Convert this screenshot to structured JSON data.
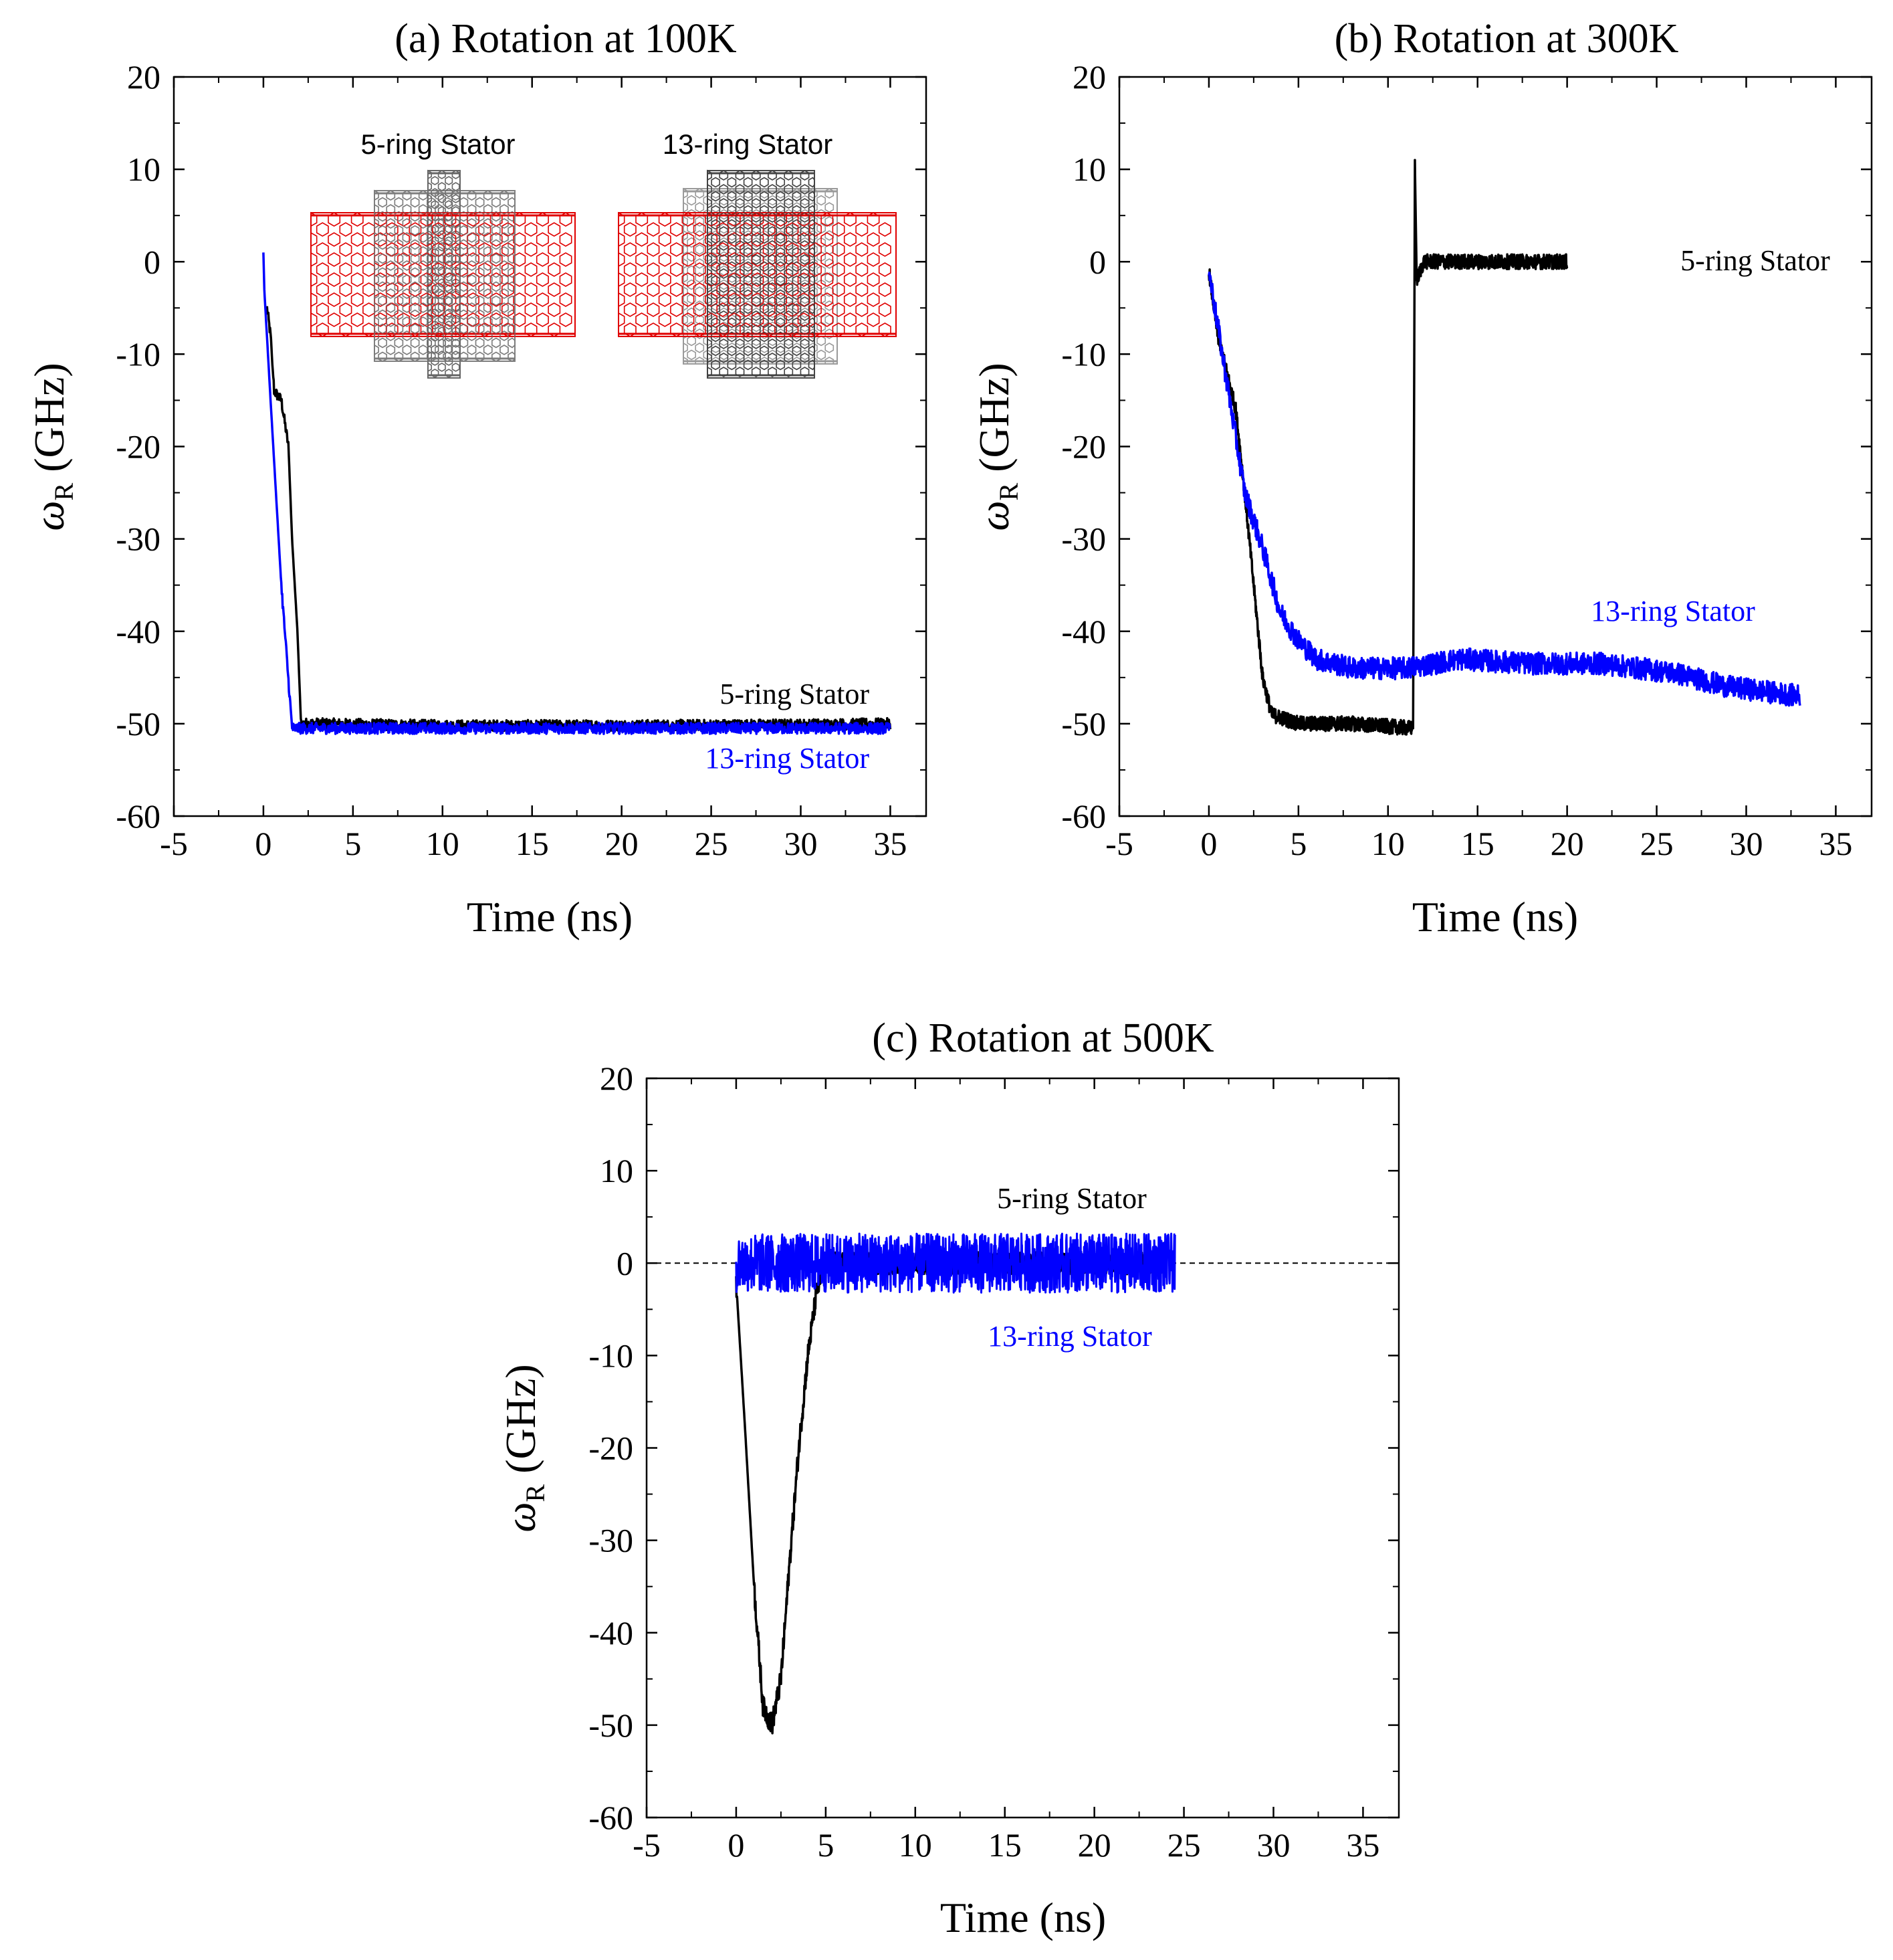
{
  "chart_data": [
    {
      "type": "line",
      "panel": "a",
      "title": "(a) Rotation at 100K",
      "xlabel": "Time (ns)",
      "ylabel_symbol": "ω",
      "ylabel_sub": "R",
      "ylabel_unit": "(GHz)",
      "xlim": [
        -5,
        37
      ],
      "ylim": [
        -60,
        20
      ],
      "xticks": [
        -5,
        0,
        5,
        10,
        15,
        20,
        25,
        30,
        35
      ],
      "yticks": [
        -60,
        -50,
        -40,
        -30,
        -20,
        -10,
        0,
        10,
        20
      ],
      "inset_labels": [
        "5-ring Stator",
        "13-ring Stator"
      ],
      "series": [
        {
          "name": "5-ring Stator",
          "color": "#000000",
          "noise": 0.6,
          "points": [
            [
              0.2,
              -5
            ],
            [
              0.4,
              -8
            ],
            [
              0.6,
              -14
            ],
            [
              1.0,
              -15
            ],
            [
              1.4,
              -20
            ],
            [
              1.6,
              -30
            ],
            [
              1.9,
              -40
            ],
            [
              2.1,
              -50
            ],
            [
              3,
              -50
            ],
            [
              10,
              -50.2
            ],
            [
              20,
              -50.2
            ],
            [
              30,
              -50.1
            ],
            [
              35,
              -50
            ]
          ]
        },
        {
          "name": "13-ring Stator",
          "color": "#0000ff",
          "noise": 0.6,
          "points": [
            [
              0,
              1
            ],
            [
              0.05,
              -3
            ],
            [
              0.4,
              -15
            ],
            [
              1.0,
              -35
            ],
            [
              1.6,
              -50.5
            ],
            [
              5,
              -50.5
            ],
            [
              15,
              -50.5
            ],
            [
              25,
              -50.5
            ],
            [
              35,
              -50.5
            ]
          ]
        }
      ]
    },
    {
      "type": "line",
      "panel": "b",
      "title": "(b) Rotation at 300K",
      "xlabel": "Time (ns)",
      "ylabel_symbol": "ω",
      "ylabel_sub": "R",
      "ylabel_unit": "(GHz)",
      "xlim": [
        -5,
        37
      ],
      "ylim": [
        -60,
        20
      ],
      "xticks": [
        -5,
        0,
        5,
        10,
        15,
        20,
        25,
        30,
        35
      ],
      "yticks": [
        -60,
        -50,
        -40,
        -30,
        -20,
        -10,
        0,
        10,
        20
      ],
      "series": [
        {
          "name": "5-ring Stator",
          "color": "#000000",
          "noise": 0.8,
          "points": [
            [
              0,
              -1
            ],
            [
              0.5,
              -8
            ],
            [
              1.5,
              -16
            ],
            [
              2.0,
              -25
            ],
            [
              2.5,
              -35
            ],
            [
              3.0,
              -45
            ],
            [
              3.5,
              -49
            ],
            [
              5,
              -50
            ],
            [
              8,
              -50
            ],
            [
              11.4,
              -50.5
            ],
            [
              11.5,
              11
            ],
            [
              11.6,
              -2
            ],
            [
              12,
              0
            ],
            [
              20,
              0
            ]
          ]
        },
        {
          "name": "13-ring Stator",
          "color": "#0000ff",
          "noise": 1.2,
          "points": [
            [
              0,
              -1
            ],
            [
              1,
              -13
            ],
            [
              2,
              -25
            ],
            [
              3,
              -31
            ],
            [
              4,
              -38
            ],
            [
              5,
              -41
            ],
            [
              6,
              -43
            ],
            [
              8,
              -44
            ],
            [
              11,
              -44
            ],
            [
              14,
              -43
            ],
            [
              18,
              -43.5
            ],
            [
              22,
              -43.5
            ],
            [
              26,
              -44.5
            ],
            [
              29,
              -46
            ],
            [
              33,
              -47
            ]
          ]
        }
      ]
    },
    {
      "type": "line",
      "panel": "c",
      "title": "(c) Rotation at 500K",
      "xlabel": "Time (ns)",
      "ylabel_symbol": "ω",
      "ylabel_sub": "R",
      "ylabel_unit": "(GHz)",
      "xlim": [
        -5,
        37
      ],
      "ylim": [
        -60,
        20
      ],
      "xticks": [
        -5,
        0,
        5,
        10,
        15,
        20,
        25,
        30,
        35
      ],
      "yticks": [
        -60,
        -50,
        -40,
        -30,
        -20,
        -10,
        0,
        10,
        20
      ],
      "reference_line_y": 0,
      "series": [
        {
          "name": "5-ring Stator",
          "color": "#000000",
          "noise": 1.2,
          "points": [
            [
              0,
              -2
            ],
            [
              0.5,
              -18
            ],
            [
              1.0,
              -35
            ],
            [
              1.5,
              -48
            ],
            [
              2.0,
              -50
            ],
            [
              2.5,
              -45
            ],
            [
              3.0,
              -32
            ],
            [
              3.5,
              -20
            ],
            [
              4.0,
              -10
            ],
            [
              4.5,
              -3
            ],
            [
              5,
              0
            ],
            [
              10,
              0
            ],
            [
              15,
              0
            ],
            [
              20,
              0
            ],
            [
              24,
              0
            ]
          ]
        },
        {
          "name": "13-ring Stator",
          "color": "#0000ff",
          "noise": 3.2,
          "points": [
            [
              0,
              0
            ],
            [
              5,
              0
            ],
            [
              10,
              0
            ],
            [
              15,
              0
            ],
            [
              20,
              0
            ],
            [
              24.5,
              0
            ]
          ]
        }
      ]
    }
  ]
}
